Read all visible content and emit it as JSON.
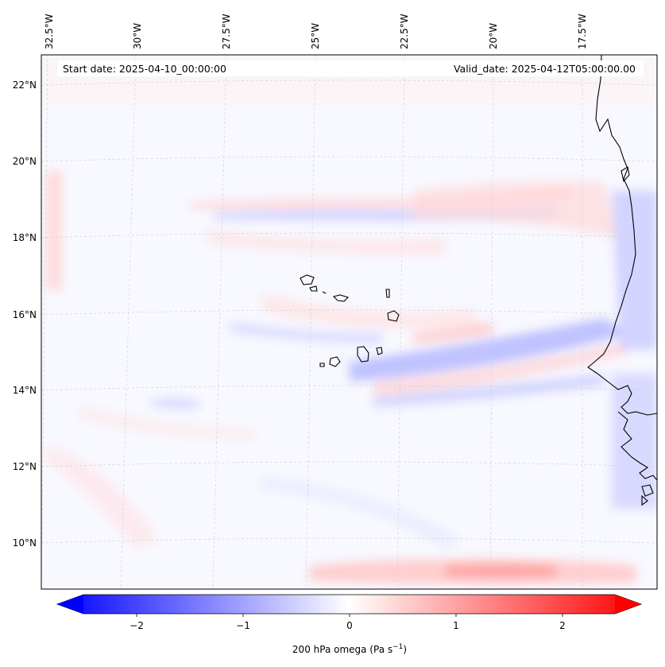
{
  "map": {
    "start_date": "Start date: 2025-04-10_00:00:00",
    "valid_date": "Valid_date: 2025-04-12T05:00:00.00",
    "lon_labels": [
      "32.5°W",
      "30°W",
      "27.5°W",
      "25°W",
      "22.5°W",
      "20°W",
      "17.5°W"
    ],
    "lat_labels": [
      "22°N",
      "20°N",
      "18°N",
      "16°N",
      "14°N",
      "12°N",
      "10°N"
    ],
    "field": "200 hPa omega",
    "colormap": "bwr"
  },
  "colorbar": {
    "label": "200 hPa omega (Pa s",
    "label_sup": "−1",
    "label_close": ")",
    "ticks": [
      "−2",
      "−1",
      "0",
      "1",
      "2"
    ],
    "range": [
      -2.5,
      2.5
    ],
    "colors": {
      "low": "#0000ff",
      "mid": "#ffffff",
      "high": "#ff0000"
    }
  }
}
